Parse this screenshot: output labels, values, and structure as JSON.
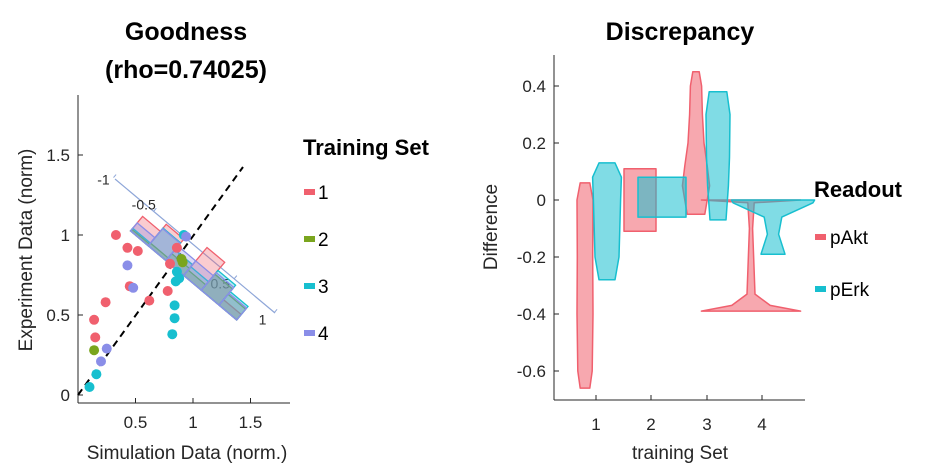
{
  "chart_data": [
    {
      "type": "scatter",
      "title": "Goodness",
      "subtitle": "(rho=0.74025)",
      "xlabel": "Simulation Data (norm.)",
      "ylabel": "Experiment Data (norm)",
      "xlim": [
        0,
        1.8
      ],
      "ylim": [
        0,
        1.85
      ],
      "xticks": [
        "0.5",
        "1",
        "1.5"
      ],
      "yticks": [
        "0",
        "0.5",
        "1",
        "1.5"
      ],
      "identity_line": true,
      "legend": {
        "title": "Training Set",
        "entries": [
          {
            "label": "1",
            "color": "#f0606e"
          },
          {
            "label": "2",
            "color": "#7aa51e"
          },
          {
            "label": "3",
            "color": "#17bfcf"
          },
          {
            "label": "4",
            "color": "#8a8ee8"
          }
        ],
        "placement": "right"
      },
      "series": [
        {
          "name": "1",
          "color": "#f0606e",
          "points": [
            [
              0.14,
              0.47
            ],
            [
              0.15,
              0.36
            ],
            [
              0.24,
              0.58
            ],
            [
              0.33,
              1.0
            ],
            [
              0.43,
              0.92
            ],
            [
              0.45,
              0.68
            ],
            [
              0.52,
              0.9
            ],
            [
              0.62,
              0.59
            ],
            [
              0.78,
              0.65
            ],
            [
              0.8,
              0.82
            ],
            [
              0.86,
              0.92
            ]
          ]
        },
        {
          "name": "2",
          "color": "#7aa51e",
          "points": [
            [
              0.14,
              0.28
            ],
            [
              0.9,
              0.85
            ],
            [
              0.91,
              0.83
            ]
          ]
        },
        {
          "name": "3",
          "color": "#17bfcf",
          "points": [
            [
              0.1,
              0.05
            ],
            [
              0.16,
              0.13
            ],
            [
              0.82,
              0.38
            ],
            [
              0.84,
              0.48
            ],
            [
              0.84,
              0.56
            ],
            [
              0.85,
              0.71
            ],
            [
              0.86,
              0.77
            ],
            [
              0.88,
              0.73
            ],
            [
              0.92,
              1.0
            ]
          ]
        },
        {
          "name": "4",
          "color": "#8a8ee8",
          "points": [
            [
              0.2,
              0.21
            ],
            [
              0.25,
              0.29
            ],
            [
              0.43,
              0.81
            ],
            [
              0.48,
              0.67
            ],
            [
              0.94,
              0.99
            ]
          ]
        }
      ],
      "projection_axis": {
        "ticks": [
          "-1",
          "-0.5",
          "0.5",
          "1"
        ],
        "tick_values": [
          -1,
          -0.5,
          0.5,
          1
        ],
        "histograms": [
          {
            "name": "1",
            "color": "#f0606e",
            "bins": [
              0.27,
              0.4,
              0.2,
              0.52,
              0.3,
              0.1
            ]
          },
          {
            "name": "2",
            "color": "#7aa51e",
            "bins": [
              0.03,
              0.05,
              0.13,
              0.1,
              0.3,
              0.2
            ]
          },
          {
            "name": "3",
            "color": "#17bfcf",
            "bins": [
              0.05,
              0.33,
              0.2,
              0.16,
              0.37,
              0.25
            ]
          },
          {
            "name": "4",
            "color": "#8a8ee8",
            "bins": [
              0.15,
              0.32,
              0.27,
              0.27,
              0.33,
              0.22
            ]
          }
        ]
      }
    },
    {
      "type": "violin",
      "title": "Discrepancy",
      "xlabel": "training Set",
      "ylabel": "Difference",
      "categories": [
        "1",
        "2",
        "3",
        "4"
      ],
      "ylim": [
        -0.7,
        0.5
      ],
      "yticks": [
        "-0.6",
        "-0.4",
        "-0.2",
        "0",
        "0.2",
        "0.4"
      ],
      "legend": {
        "title": "Readout",
        "entries": [
          {
            "label": "pAkt",
            "color": "#f0606e"
          },
          {
            "label": "pErk",
            "color": "#17bfcf"
          }
        ],
        "placement": "right"
      },
      "series": [
        {
          "name": "pAkt",
          "color": "#f0606e",
          "violins": [
            {
              "category": "1",
              "min": -0.66,
              "max": 0.06,
              "density": [
                [
                  -0.66,
                  0.3
                ],
                [
                  -0.6,
                  0.45
                ],
                [
                  -0.4,
                  0.5
                ],
                [
                  -0.2,
                  0.48
                ],
                [
                  0.0,
                  0.5
                ],
                [
                  0.06,
                  0.3
                ]
              ]
            },
            {
              "category": "2",
              "min": -0.11,
              "max": 0.11,
              "density": [
                [
                  -0.11,
                  1.0
                ],
                [
                  0.11,
                  1.0
                ]
              ]
            },
            {
              "category": "3",
              "min": -0.05,
              "max": 0.45,
              "density": [
                [
                  -0.05,
                  0.55
                ],
                [
                  0.05,
                  0.85
                ],
                [
                  0.12,
                  0.7
                ],
                [
                  0.2,
                  0.5
                ],
                [
                  0.3,
                  0.4
                ],
                [
                  0.4,
                  0.35
                ],
                [
                  0.45,
                  0.2
                ]
              ]
            },
            {
              "category": "4",
              "min": -0.39,
              "max": 0.0,
              "density": [
                [
                  -0.39,
                  3.1
                ],
                [
                  -0.37,
                  1.2
                ],
                [
                  -0.33,
                  0.25
                ],
                [
                  -0.1,
                  0.1
                ],
                [
                  -0.01,
                  0.2
                ],
                [
                  0.0,
                  3.1
                ]
              ]
            }
          ]
        },
        {
          "name": "pErk",
          "color": "#17bfcf",
          "violins": [
            {
              "category": "1",
              "min": -0.28,
              "max": 0.13,
              "density": [
                [
                  -0.28,
                  0.5
                ],
                [
                  -0.2,
                  0.75
                ],
                [
                  -0.1,
                  0.8
                ],
                [
                  0.0,
                  0.85
                ],
                [
                  0.08,
                  0.9
                ],
                [
                  0.13,
                  0.5
                ]
              ]
            },
            {
              "category": "2",
              "min": -0.06,
              "max": 0.08,
              "density": [
                [
                  -0.06,
                  1.5
                ],
                [
                  0.08,
                  1.5
                ]
              ]
            },
            {
              "category": "3",
              "min": -0.07,
              "max": 0.38,
              "density": [
                [
                  -0.07,
                  0.5
                ],
                [
                  0.05,
                  0.65
                ],
                [
                  0.15,
                  0.72
                ],
                [
                  0.3,
                  0.75
                ],
                [
                  0.38,
                  0.55
                ]
              ]
            },
            {
              "category": "4",
              "min": -0.19,
              "max": 0.0,
              "density": [
                [
                  -0.19,
                  0.75
                ],
                [
                  -0.12,
                  0.35
                ],
                [
                  -0.06,
                  0.55
                ],
                [
                  -0.01,
                  2.5
                ],
                [
                  0.0,
                  2.6
                ]
              ]
            }
          ]
        }
      ]
    }
  ]
}
